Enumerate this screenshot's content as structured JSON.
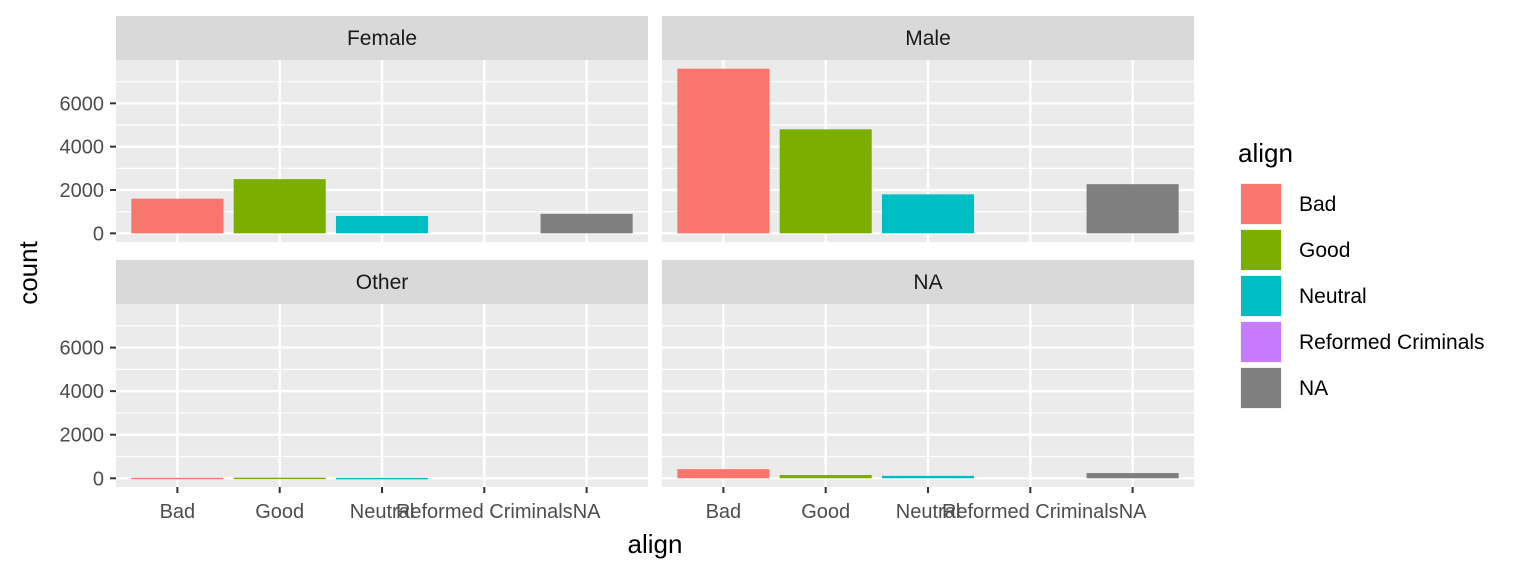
{
  "chart_data": {
    "type": "bar",
    "facet_var": "sex",
    "facets": [
      {
        "label": "Female",
        "values": [
          1600,
          2500,
          800,
          0,
          900
        ]
      },
      {
        "label": "Male",
        "values": [
          7600,
          4800,
          1800,
          0,
          2270
        ]
      },
      {
        "label": "Other",
        "values": [
          25,
          30,
          20,
          0,
          0
        ]
      },
      {
        "label": "NA",
        "values": [
          420,
          150,
          110,
          0,
          240
        ]
      }
    ],
    "categories": [
      "Bad",
      "Good",
      "Neutral",
      "Reformed Criminals",
      "NA"
    ],
    "colors": [
      "#F8766D",
      "#7CAE00",
      "#00BFC4",
      "#C77CFF",
      "#7F7F7F"
    ],
    "xlabel": "align",
    "ylabel": "count",
    "yticks": [
      0,
      2000,
      4000,
      6000
    ],
    "ylim": [
      -400,
      8000
    ],
    "legend": {
      "title": "align",
      "items": [
        "Bad",
        "Good",
        "Neutral",
        "Reformed Criminals",
        "NA"
      ],
      "position": "right"
    },
    "grid": true
  }
}
